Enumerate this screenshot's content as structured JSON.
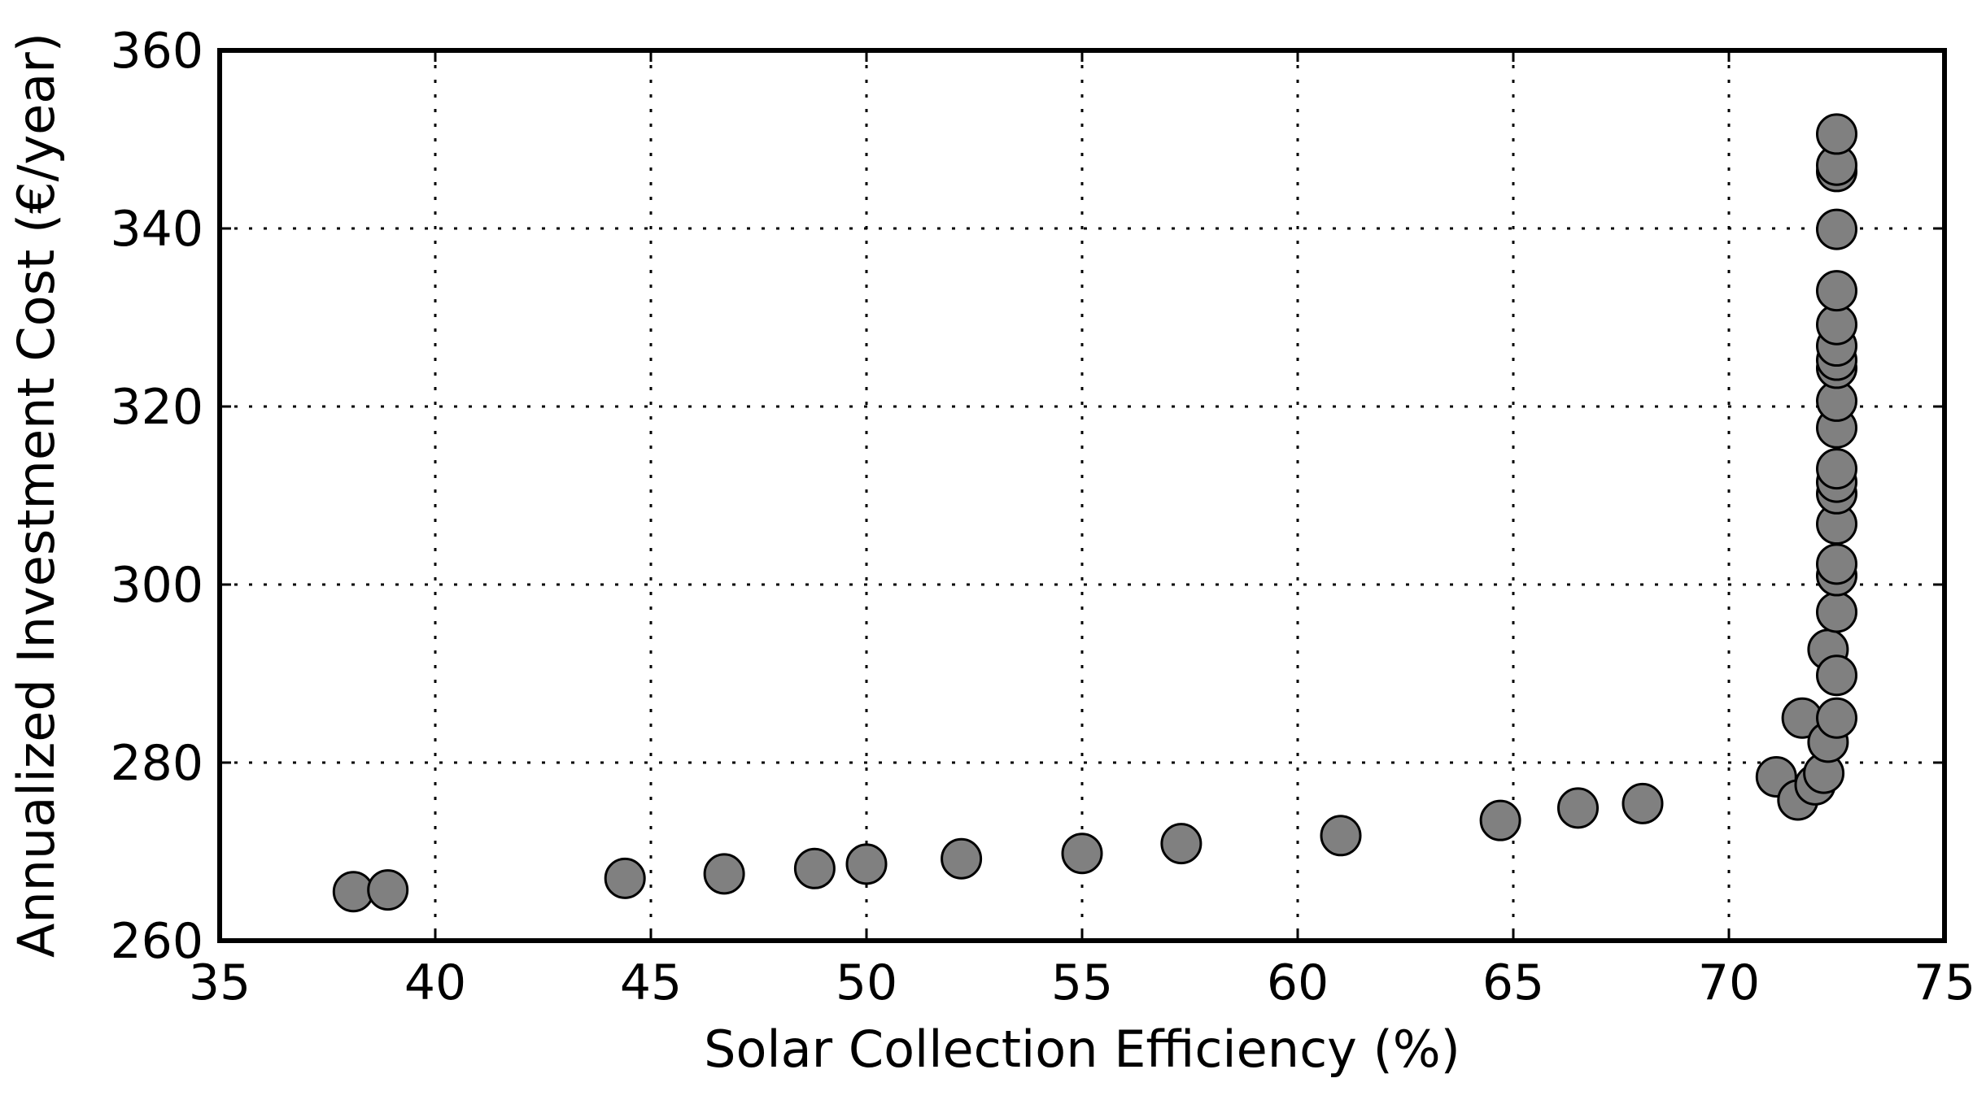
{
  "chart_data": {
    "type": "scatter",
    "title": "",
    "xlabel": "Solar Collection Efficiency (%)",
    "ylabel": "Annualized Investment Cost (€/year)",
    "xlim": [
      35,
      75
    ],
    "ylim": [
      260,
      360
    ],
    "xticks": [
      "35",
      "40",
      "45",
      "50",
      "55",
      "60",
      "65",
      "70",
      "75"
    ],
    "yticks": [
      "260",
      "280",
      "300",
      "320",
      "340",
      "360"
    ],
    "grid": true,
    "legend": "none",
    "marker_color": "#808080",
    "marker_edge_color": "#000000",
    "series": [
      {
        "points": [
          [
            38.1,
            265.5
          ],
          [
            38.9,
            265.7
          ],
          [
            44.4,
            267.0
          ],
          [
            46.7,
            267.5
          ],
          [
            48.8,
            268.1
          ],
          [
            50.0,
            268.6
          ],
          [
            52.2,
            269.2
          ],
          [
            55.0,
            269.8
          ],
          [
            57.3,
            270.9
          ],
          [
            61.0,
            271.8
          ],
          [
            64.7,
            273.5
          ],
          [
            66.5,
            274.9
          ],
          [
            68.0,
            275.4
          ],
          [
            71.1,
            278.4
          ],
          [
            71.6,
            275.8
          ],
          [
            72.0,
            277.5
          ],
          [
            72.2,
            278.8
          ],
          [
            71.7,
            285.0
          ],
          [
            72.3,
            282.3
          ],
          [
            72.3,
            292.7
          ],
          [
            72.5,
            285.0
          ],
          [
            72.5,
            289.8
          ],
          [
            72.5,
            296.9
          ],
          [
            72.5,
            301.0
          ],
          [
            72.5,
            302.3
          ],
          [
            72.5,
            306.8
          ],
          [
            72.5,
            310.2
          ],
          [
            72.5,
            311.5
          ],
          [
            72.5,
            313.0
          ],
          [
            72.5,
            317.6
          ],
          [
            72.5,
            320.6
          ],
          [
            72.5,
            324.3
          ],
          [
            72.5,
            325.2
          ],
          [
            72.5,
            326.8
          ],
          [
            72.5,
            329.2
          ],
          [
            72.5,
            333.0
          ],
          [
            72.5,
            339.9
          ],
          [
            72.5,
            346.4
          ],
          [
            72.5,
            347.1
          ],
          [
            72.5,
            350.6
          ]
        ]
      }
    ]
  }
}
